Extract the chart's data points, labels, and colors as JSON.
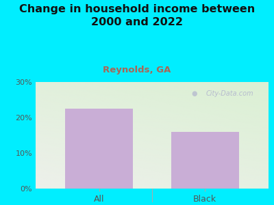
{
  "title": "Change in household income between\n2000 and 2022",
  "subtitle": "Reynolds, GA",
  "categories": [
    "All",
    "Black"
  ],
  "values": [
    22.5,
    16.0
  ],
  "bar_color": "#c9aed6",
  "title_fontsize": 11.5,
  "subtitle_fontsize": 9.5,
  "subtitle_color": "#aa6655",
  "title_color": "#111111",
  "tick_label_color": "#555555",
  "background_color": "#00eeff",
  "plot_bg_top_right": "#f0f0ee",
  "plot_bg_bottom_left": "#d8f0d0",
  "ylim": [
    0,
    30
  ],
  "yticks": [
    0,
    10,
    20,
    30
  ],
  "ytick_labels": [
    "0%",
    "10%",
    "20%",
    "30%"
  ],
  "watermark": "City-Data.com"
}
